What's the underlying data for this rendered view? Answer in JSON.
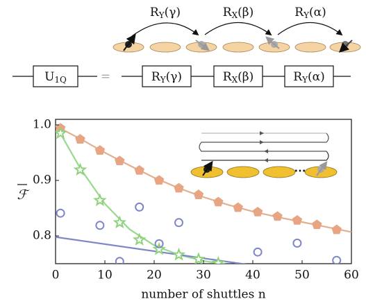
{
  "diagram": {
    "gates_top": [
      {
        "base": "R",
        "sub": "Y",
        "arg": "(γ)"
      },
      {
        "base": "R",
        "sub": "X",
        "arg": "(β)"
      },
      {
        "base": "R",
        "sub": "Y",
        "arg": "(α)"
      }
    ],
    "circuit": {
      "lhs": {
        "base": "U",
        "sub": "1Q"
      },
      "equals": "=",
      "gates": [
        {
          "base": "R",
          "sub": "Y",
          "arg": "(γ)"
        },
        {
          "base": "R",
          "sub": "X",
          "arg": "(β)"
        },
        {
          "base": "R",
          "sub": "Y",
          "arg": "(α)"
        }
      ]
    },
    "inset_dots": "⋯"
  },
  "chart_data": {
    "type": "scatter",
    "x_label": "number of shuttles n",
    "y_label": "ℱ",
    "xlim": [
      0,
      60
    ],
    "ylim": [
      0.75,
      1.01
    ],
    "xticks": [
      0,
      10,
      20,
      30,
      40,
      50,
      60
    ],
    "yticks": [
      0.8,
      0.9,
      {
        "value": 1.0,
        "label": "1.0"
      }
    ],
    "series": [
      {
        "marker": "line",
        "color": "#e2b08e",
        "x": [
          0,
          5,
          10,
          15,
          20,
          25,
          30,
          35,
          40,
          45,
          50,
          55,
          60
        ],
        "values": [
          0.998,
          0.975,
          0.95,
          0.927,
          0.905,
          0.886,
          0.87,
          0.856,
          0.844,
          0.834,
          0.825,
          0.816,
          0.807
        ]
      },
      {
        "marker": "line",
        "color": "#97d98a",
        "x": [
          0,
          5,
          10,
          15,
          20,
          25,
          30,
          35
        ],
        "values": [
          1.0,
          0.922,
          0.858,
          0.812,
          0.783,
          0.766,
          0.755,
          0.748
        ]
      },
      {
        "marker": "line",
        "color": "#7d86c9",
        "x": [
          0,
          40
        ],
        "values": [
          0.798,
          0.747
        ]
      },
      {
        "marker": "pentagon",
        "color": "#e8a583",
        "x": [
          1,
          5,
          9,
          13,
          17,
          21,
          25,
          29,
          33,
          37,
          41,
          45,
          49,
          53,
          57
        ],
        "values": [
          0.994,
          0.974,
          0.954,
          0.935,
          0.918,
          0.9,
          0.886,
          0.874,
          0.861,
          0.851,
          0.843,
          0.835,
          0.828,
          0.82,
          0.811
        ]
      },
      {
        "marker": "star",
        "color": "#8fd17e",
        "x": [
          1,
          5,
          9,
          13,
          17,
          21,
          25,
          29,
          33
        ],
        "values": [
          0.985,
          0.919,
          0.864,
          0.824,
          0.793,
          0.776,
          0.766,
          0.758,
          0.751
        ]
      },
      {
        "marker": "circle",
        "color": "#7d86c9",
        "x": [
          1,
          9,
          13,
          17,
          21,
          25,
          41,
          49,
          57
        ],
        "values": [
          0.841,
          0.819,
          0.754,
          0.852,
          0.786,
          0.824,
          0.771,
          0.787,
          0.756
        ]
      }
    ]
  }
}
